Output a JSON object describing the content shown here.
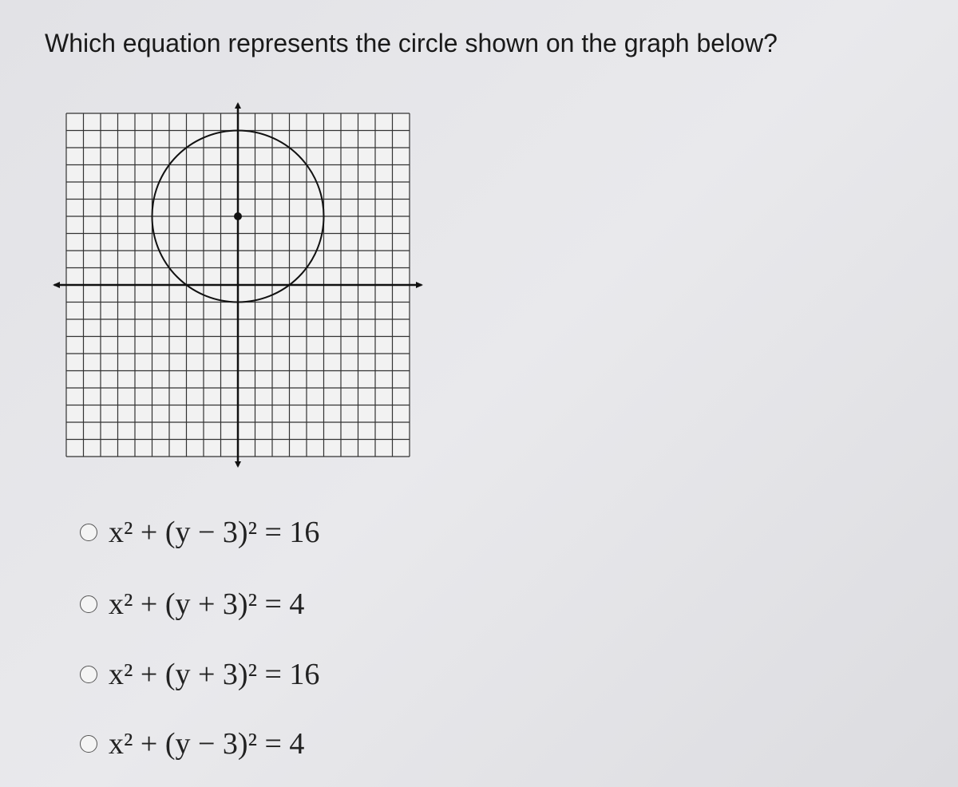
{
  "question": "Which equation represents the circle shown on the graph below?",
  "options": [
    "x² + (y − 3)² = 16",
    "x² + (y + 3)² = 4",
    "x² + (y + 3)² = 16",
    "x² + (y − 3)² = 4"
  ]
}
